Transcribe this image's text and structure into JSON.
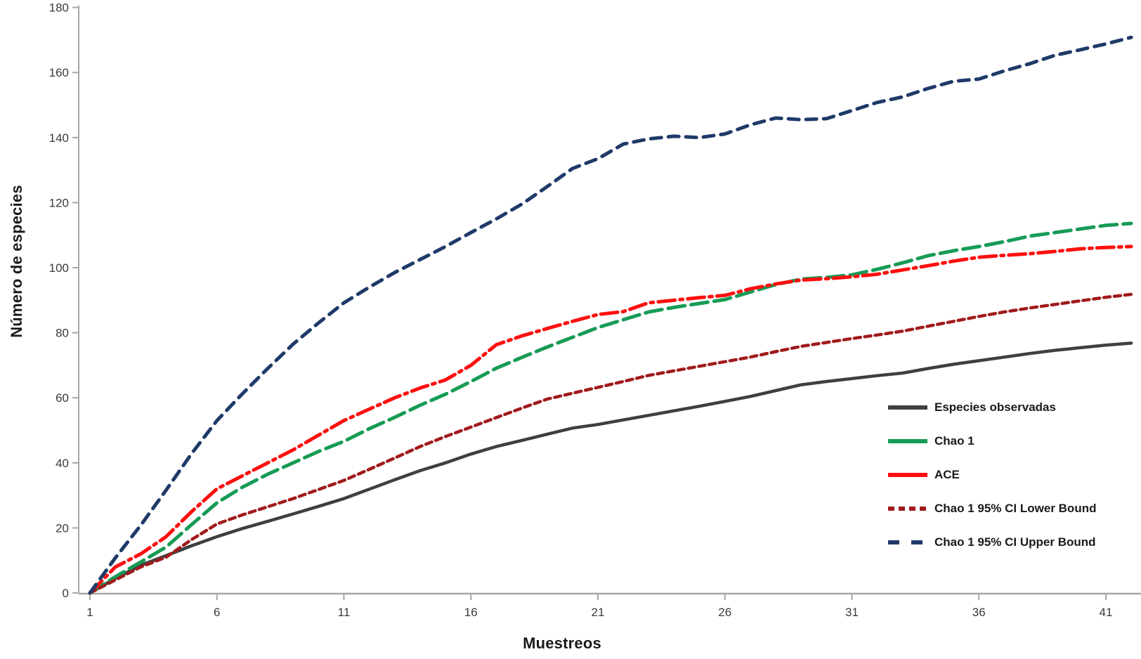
{
  "chart_data": {
    "type": "line",
    "title": "",
    "x_axis": {
      "title": "Muestreos",
      "ticks": [
        1,
        6,
        11,
        16,
        21,
        26,
        31,
        36,
        41
      ],
      "range": [
        1,
        42
      ],
      "grid": false
    },
    "y_axis": {
      "title": "Número de especies",
      "ticks": [
        0,
        20,
        40,
        60,
        80,
        100,
        120,
        140,
        160,
        180
      ],
      "range": [
        0,
        180
      ],
      "grid": false
    },
    "legend_position": "right-middle",
    "x": [
      1,
      2,
      3,
      4,
      5,
      6,
      7,
      8,
      9,
      10,
      11,
      12,
      13,
      14,
      15,
      16,
      17,
      18,
      19,
      20,
      21,
      22,
      23,
      24,
      25,
      26,
      27,
      28,
      29,
      30,
      31,
      32,
      33,
      34,
      35,
      36,
      37,
      38,
      39,
      40,
      41,
      42
    ],
    "series": [
      {
        "name": "Especies observadas",
        "color": "#3f3f3f",
        "dash": "solid",
        "legend_dash": "solid",
        "values": [
          0,
          4.5,
          8.5,
          11.5,
          14.5,
          17.3,
          19.8,
          22,
          24.3,
          26.6,
          29,
          31.9,
          34.8,
          37.6,
          40,
          42.7,
          45,
          46.9,
          48.8,
          50.7,
          51.8,
          53.2,
          54.6,
          56,
          57.4,
          58.9,
          60.4,
          62.2,
          64,
          65,
          65.9,
          66.8,
          67.6,
          69,
          70.3,
          71.4,
          72.5,
          73.6,
          74.6,
          75.4,
          76.2,
          76.8
        ]
      },
      {
        "name": "Chao 1",
        "color": "#169b55",
        "dash": "long-dash",
        "legend_dash": "solid",
        "values": [
          0,
          5,
          9.5,
          14.1,
          21,
          27.7,
          32.5,
          36.5,
          40,
          43.5,
          46.6,
          50.5,
          54,
          57.7,
          61.1,
          65,
          69.1,
          72.4,
          75.6,
          78.6,
          81.6,
          84,
          86.4,
          87.8,
          89,
          90.2,
          92.5,
          94.8,
          96.5,
          97,
          97.8,
          99.5,
          101.5,
          103.7,
          105.2,
          106.5,
          108,
          109.7,
          110.8,
          111.9,
          113,
          113.6
        ]
      },
      {
        "name": "ACE",
        "color": "#fe0f0f",
        "dash": "dash-dot",
        "legend_dash": "solid",
        "values": [
          0,
          8,
          12,
          17.3,
          25,
          32,
          36,
          40,
          44,
          48.5,
          53,
          56.5,
          60,
          63,
          65.5,
          70,
          76.3,
          79,
          81.3,
          83.5,
          85.6,
          86.5,
          89.2,
          90,
          90.8,
          91.5,
          93.5,
          95,
          96.2,
          96.6,
          97.2,
          98,
          99.3,
          100.6,
          102,
          103.2,
          103.8,
          104.3,
          105,
          105.8,
          106.2,
          106.5
        ]
      },
      {
        "name": "Chao 1 95% CI Lower Bound",
        "color": "#a01a1c",
        "dash": "short-dash",
        "legend_dash": "short-dash",
        "values": [
          0,
          4,
          8,
          11,
          16.4,
          21.2,
          24,
          26.5,
          29,
          31.8,
          34.6,
          38,
          41.5,
          45,
          48.1,
          51,
          53.9,
          56.8,
          59.6,
          61.4,
          63.2,
          65,
          66.9,
          68.3,
          69.7,
          71.1,
          72.5,
          74.2,
          75.8,
          77,
          78.2,
          79.3,
          80.5,
          82,
          83.5,
          85,
          86.4,
          87.6,
          88.7,
          89.8,
          90.9,
          91.8
        ]
      },
      {
        "name": "Chao 1 95% CI Upper Bound",
        "color": "#1f3a68",
        "dash": "dash",
        "legend_dash": "dash-wide",
        "values": [
          0,
          10.8,
          20.8,
          31.6,
          42.8,
          53,
          61.2,
          69,
          76.5,
          83,
          89.2,
          94,
          98.5,
          102.5,
          106.5,
          110.8,
          115,
          119.5,
          124.9,
          130.5,
          133.5,
          138,
          139.6,
          140.4,
          140,
          141.1,
          143.9,
          146,
          145.5,
          145.8,
          148.3,
          150.8,
          152.5,
          155.1,
          157.3,
          158,
          160.5,
          162.7,
          165.3,
          167,
          168.8,
          170.8
        ]
      }
    ]
  }
}
